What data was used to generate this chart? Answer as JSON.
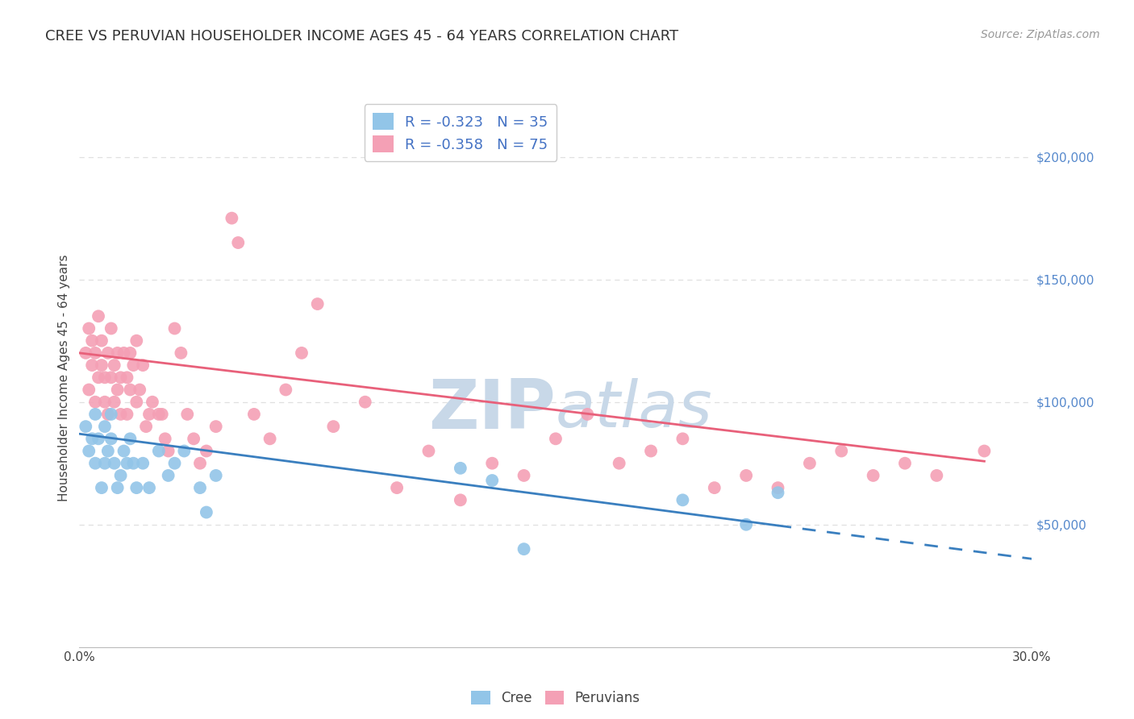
{
  "title": "CREE VS PERUVIAN HOUSEHOLDER INCOME AGES 45 - 64 YEARS CORRELATION CHART",
  "source": "Source: ZipAtlas.com",
  "ylabel": "Householder Income Ages 45 - 64 years",
  "xlim": [
    0.0,
    0.3
  ],
  "ylim": [
    0,
    220000
  ],
  "xticks": [
    0.0,
    0.05,
    0.1,
    0.15,
    0.2,
    0.25,
    0.3
  ],
  "xtick_labels": [
    "0.0%",
    "",
    "",
    "",
    "",
    "",
    "30.0%"
  ],
  "ytick_labels_right": [
    "$50,000",
    "$100,000",
    "$150,000",
    "$200,000"
  ],
  "ytick_vals_right": [
    50000,
    100000,
    150000,
    200000
  ],
  "cree_color": "#92C5E8",
  "peruvian_color": "#F4A0B5",
  "cree_line_color": "#3A7FBF",
  "peruvian_line_color": "#E8607A",
  "cree_R": -0.323,
  "cree_N": 35,
  "peruvian_R": -0.358,
  "peruvian_N": 75,
  "background_color": "#ffffff",
  "grid_color": "#e0e0e0",
  "watermark_zip": "ZIP",
  "watermark_atlas": "atlas",
  "watermark_color": "#c8d8e8",
  "cree_line_intercept": 87000,
  "cree_line_slope": -170000,
  "peruvian_line_intercept": 120000,
  "peruvian_line_slope": -155000,
  "cree_x": [
    0.002,
    0.003,
    0.004,
    0.005,
    0.005,
    0.006,
    0.007,
    0.008,
    0.008,
    0.009,
    0.01,
    0.01,
    0.011,
    0.012,
    0.013,
    0.014,
    0.015,
    0.016,
    0.017,
    0.018,
    0.02,
    0.022,
    0.025,
    0.028,
    0.03,
    0.033,
    0.038,
    0.04,
    0.043,
    0.12,
    0.13,
    0.14,
    0.19,
    0.21,
    0.22
  ],
  "cree_y": [
    90000,
    80000,
    85000,
    75000,
    95000,
    85000,
    65000,
    75000,
    90000,
    80000,
    85000,
    95000,
    75000,
    65000,
    70000,
    80000,
    75000,
    85000,
    75000,
    65000,
    75000,
    65000,
    80000,
    70000,
    75000,
    80000,
    65000,
    55000,
    70000,
    73000,
    68000,
    40000,
    60000,
    50000,
    63000
  ],
  "peruvian_x": [
    0.002,
    0.003,
    0.003,
    0.004,
    0.004,
    0.005,
    0.005,
    0.006,
    0.006,
    0.007,
    0.007,
    0.008,
    0.008,
    0.009,
    0.009,
    0.01,
    0.01,
    0.011,
    0.011,
    0.012,
    0.012,
    0.013,
    0.013,
    0.014,
    0.015,
    0.015,
    0.016,
    0.016,
    0.017,
    0.018,
    0.018,
    0.019,
    0.02,
    0.021,
    0.022,
    0.023,
    0.025,
    0.026,
    0.027,
    0.028,
    0.03,
    0.032,
    0.034,
    0.036,
    0.038,
    0.04,
    0.043,
    0.048,
    0.05,
    0.055,
    0.06,
    0.065,
    0.07,
    0.075,
    0.08,
    0.09,
    0.1,
    0.11,
    0.12,
    0.13,
    0.14,
    0.15,
    0.16,
    0.17,
    0.18,
    0.19,
    0.2,
    0.21,
    0.22,
    0.23,
    0.24,
    0.25,
    0.26,
    0.27,
    0.285
  ],
  "peruvian_y": [
    120000,
    105000,
    130000,
    115000,
    125000,
    100000,
    120000,
    110000,
    135000,
    115000,
    125000,
    100000,
    110000,
    95000,
    120000,
    110000,
    130000,
    100000,
    115000,
    120000,
    105000,
    95000,
    110000,
    120000,
    110000,
    95000,
    120000,
    105000,
    115000,
    100000,
    125000,
    105000,
    115000,
    90000,
    95000,
    100000,
    95000,
    95000,
    85000,
    80000,
    130000,
    120000,
    95000,
    85000,
    75000,
    80000,
    90000,
    175000,
    165000,
    95000,
    85000,
    105000,
    120000,
    140000,
    90000,
    100000,
    65000,
    80000,
    60000,
    75000,
    70000,
    85000,
    95000,
    75000,
    80000,
    85000,
    65000,
    70000,
    65000,
    75000,
    80000,
    70000,
    75000,
    70000,
    80000
  ]
}
